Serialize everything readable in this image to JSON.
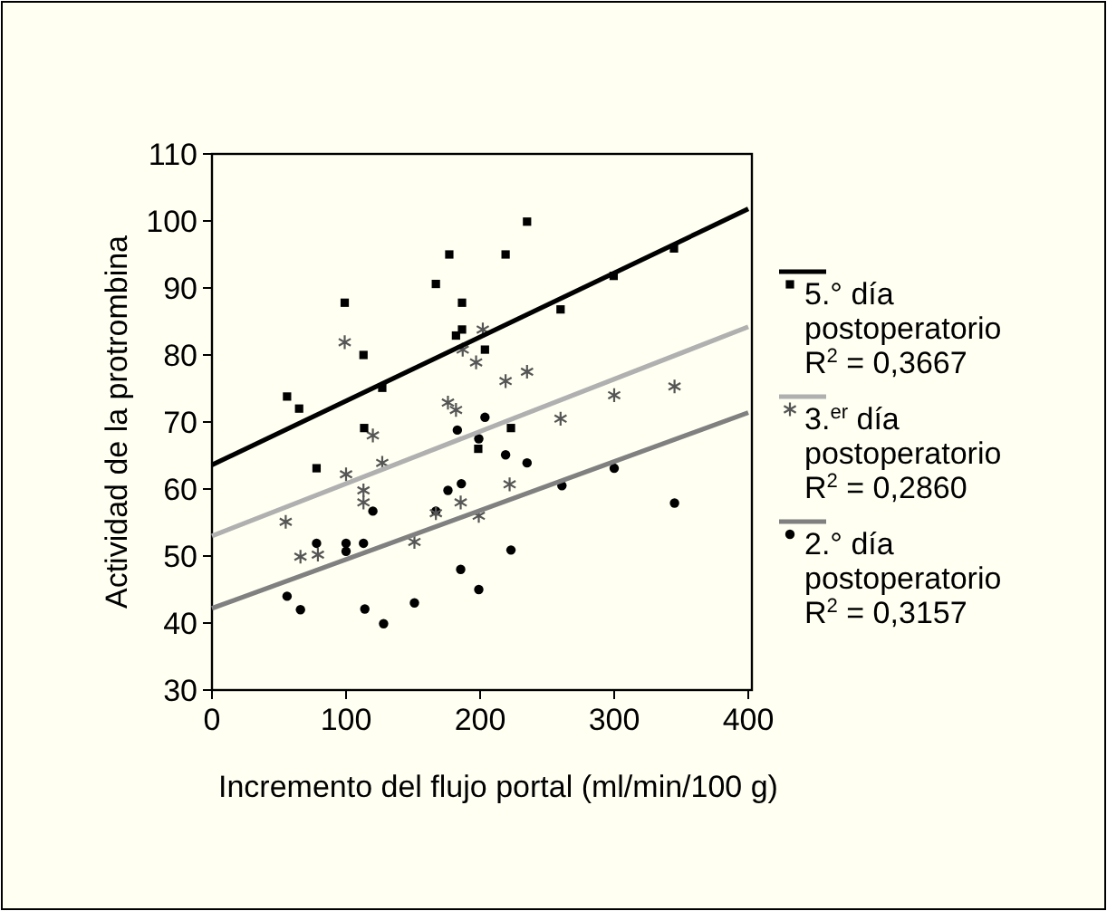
{
  "chart_data": {
    "type": "scatter",
    "xlabel": "Incremento del flujo portal (ml/min/100 g)",
    "ylabel": "Actividad de la protrombina",
    "xlim": [
      0,
      400
    ],
    "xticks": [
      0,
      100,
      200,
      300,
      400
    ],
    "ylim": [
      30,
      110
    ],
    "yticks": [
      30,
      40,
      50,
      60,
      70,
      80,
      90,
      100,
      110
    ],
    "grid": false,
    "legend": "right",
    "series": [
      {
        "name": "5.° día postoperatorio R$^{2}$ = 0,3667",
        "color": "#000000",
        "marker": "square",
        "x": [
          56,
          65,
          99,
          113,
          127,
          113.5,
          78,
          167,
          177,
          186.5,
          186.5,
          182,
          203.6,
          219,
          235,
          223,
          198.6,
          260,
          299.6,
          344.6
        ],
        "values": [
          73.8,
          72,
          87.8,
          80,
          75.1,
          69.1,
          63.1,
          90.6,
          95,
          87.8,
          83.8,
          82.9,
          80.8,
          95,
          99.9,
          69.1,
          66,
          86.8,
          91.8,
          95.9
        ]
      },
      {
        "name": "3.$^{er}$ día postoperatorio R$^{2}$ = 0,2860",
        "color": "#555555",
        "marker": "cross",
        "x": [
          99,
          202,
          187,
          197,
          219,
          235,
          176,
          182,
          120,
          300,
          345,
          260,
          100,
          127,
          55,
          66,
          79,
          113,
          113,
          151,
          167,
          185.5,
          199,
          222
        ],
        "values": [
          81.9,
          83.8,
          80.8,
          78.9,
          76.1,
          77.5,
          72.9,
          71.8,
          68,
          74,
          75.3,
          70.5,
          62.2,
          63.9,
          55.1,
          49.9,
          50.2,
          59.8,
          58,
          52.1,
          56.4,
          58,
          56,
          60.7
        ]
      },
      {
        "name": "2.° día postoperatorio R$^{2}$ = 0,3157",
        "color": "#000000",
        "marker": "circle",
        "x": [
          203.6,
          183,
          199,
          219,
          235,
          300,
          261,
          345,
          176,
          186,
          167,
          120,
          78,
          100,
          100,
          113,
          56,
          66,
          114,
          128,
          151,
          185.5,
          199,
          223
        ],
        "values": [
          70.7,
          68.8,
          67.5,
          65.1,
          63.9,
          63.1,
          60.5,
          57.9,
          59.8,
          60.8,
          56.7,
          56.7,
          51.9,
          51.9,
          50.7,
          51.9,
          44,
          42,
          42.1,
          39.9,
          43,
          48,
          45,
          50.9
        ]
      },
      {
        "type": "line",
        "color": "#000000",
        "x": [
          0,
          400
        ],
        "values": [
          63.6,
          101.8
        ]
      },
      {
        "type": "line",
        "color": "#b0b0b0",
        "x": [
          0,
          400
        ],
        "values": [
          53,
          84.2
        ]
      },
      {
        "type": "line",
        "color": "#808080",
        "x": [
          0,
          400
        ],
        "values": [
          42.2,
          71.4
        ]
      }
    ]
  }
}
